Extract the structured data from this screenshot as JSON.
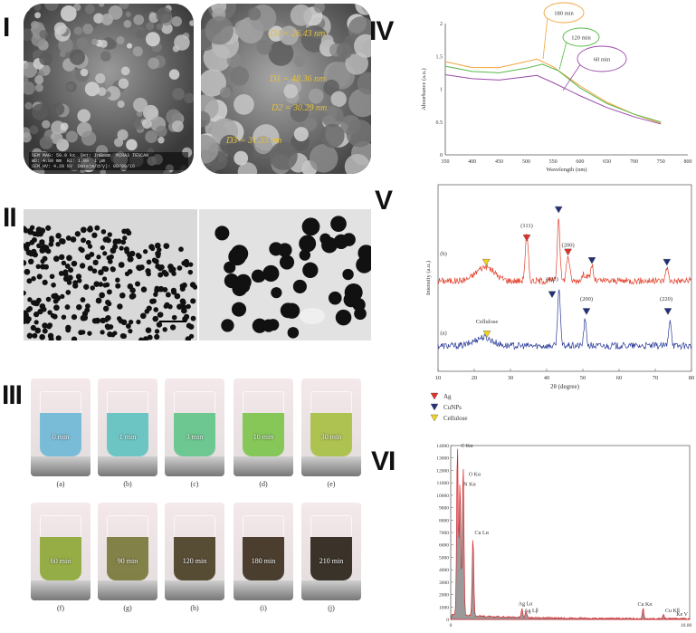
{
  "panels": {
    "I": {
      "roman": "I",
      "sem_footer": {
        "line1": "SEM MAG: 50.0 kx",
        "line2": "WD: 4.80 mm",
        "line3": "SEM HV: 4.20 kV",
        "line4": "Date(m/d/y): 08/09/16",
        "det": "Det: InBeam",
        "bi": "BI: 1.00",
        "scale": "1 µm",
        "brand": "MIRA3 TESCAN"
      },
      "labels": [
        "D4 = 26.43 nm",
        "D1 = 48.36 nm",
        "D2 = 30.29 nm",
        "D3 = 31.33 nm"
      ]
    },
    "II": {
      "roman": "II",
      "scale_label": "100 nm"
    },
    "III": {
      "roman": "III",
      "beakers": [
        {
          "time": "0 min",
          "sub": "(a)",
          "color": "#6fb8d6"
        },
        {
          "time": "1 min",
          "sub": "(b)",
          "color": "#62c2c0"
        },
        {
          "time": "3 min",
          "sub": "(c)",
          "color": "#62c48a"
        },
        {
          "time": "10 min",
          "sub": "(d)",
          "color": "#7dc44c"
        },
        {
          "time": "30 min",
          "sub": "(e)",
          "color": "#a7bf44"
        },
        {
          "time": "60 min",
          "sub": "(f)",
          "color": "#8ea838"
        },
        {
          "time": "90 min",
          "sub": "(g)",
          "color": "#78783a"
        },
        {
          "time": "120 min",
          "sub": "(h)",
          "color": "#4a3f25"
        },
        {
          "time": "180 min",
          "sub": "(i)",
          "color": "#3d3020"
        },
        {
          "time": "210 min",
          "sub": "(j)",
          "color": "#2b2419"
        }
      ]
    },
    "IV": {
      "roman": "IV"
    },
    "V": {
      "roman": "V",
      "legend": [
        "Ag",
        "CuNPs",
        "Cellulose"
      ]
    },
    "VI": {
      "roman": "VI"
    }
  },
  "chart_data": [
    {
      "id": "uv-vis",
      "type": "line",
      "xlabel": "Wavelength (nm)",
      "ylabel": "Absorbance (a.u.)",
      "xlim": [
        350,
        800
      ],
      "ylim": [
        0,
        2
      ],
      "xticks": [
        350,
        400,
        450,
        500,
        550,
        600,
        650,
        700,
        750,
        800
      ],
      "yticks": [
        0,
        0.5,
        1,
        1.5,
        2
      ],
      "series": [
        {
          "name": "180 min",
          "color": "#f2a33c",
          "x": [
            350,
            400,
            450,
            500,
            520,
            550,
            600,
            650,
            700,
            750
          ],
          "y": [
            1.42,
            1.33,
            1.33,
            1.42,
            1.46,
            1.34,
            1.05,
            0.8,
            0.62,
            0.48
          ]
        },
        {
          "name": "120 min",
          "color": "#58b848",
          "x": [
            350,
            400,
            450,
            500,
            530,
            560,
            600,
            650,
            700,
            750
          ],
          "y": [
            1.35,
            1.27,
            1.25,
            1.32,
            1.38,
            1.28,
            1.02,
            0.78,
            0.62,
            0.5
          ]
        },
        {
          "name": "60 min",
          "color": "#9a4aa8",
          "x": [
            350,
            400,
            450,
            500,
            520,
            550,
            600,
            650,
            700,
            750
          ],
          "y": [
            1.22,
            1.16,
            1.14,
            1.19,
            1.21,
            1.1,
            0.9,
            0.72,
            0.58,
            0.47
          ]
        }
      ],
      "callouts": [
        "180 min",
        "120 min",
        "60 min"
      ]
    },
    {
      "id": "xrd",
      "type": "line",
      "xlabel": "2θ (degree)",
      "ylabel": "Intensity (a.u.)",
      "xlim": [
        10,
        80
      ],
      "xticks": [
        10,
        20,
        30,
        40,
        50,
        60,
        70,
        80
      ],
      "series": [
        {
          "name": "(b)",
          "color": "#e0402a",
          "baseline": 0.3,
          "peaks": [
            [
              23,
              0.25,
              3.5
            ],
            [
              34.5,
              0.8,
              0.6
            ],
            [
              43.3,
              1.15,
              0.5
            ],
            [
              45.9,
              0.45,
              0.6
            ],
            [
              50.5,
              0.12,
              1
            ],
            [
              52.5,
              0.28,
              0.5
            ],
            [
              73.2,
              0.25,
              0.5
            ]
          ]
        },
        {
          "name": "(a)",
          "color": "#2a3a9a",
          "baseline": -0.85,
          "peaks": [
            [
              22.5,
              0.15,
              3.5
            ],
            [
              43.4,
              1.05,
              0.5
            ],
            [
              50.6,
              0.45,
              0.5
            ],
            [
              74.1,
              0.48,
              0.5
            ]
          ]
        }
      ],
      "annotations": [
        {
          "text": "(111)",
          "x": 34.5,
          "y": 1.25
        },
        {
          "text": "(200)",
          "x": 45.9,
          "y": 0.9
        },
        {
          "text": "(111)",
          "x": 41.5,
          "y": 0.3
        },
        {
          "text": "(200)",
          "x": 51,
          "y": -0.05
        },
        {
          "text": "(220)",
          "x": 73,
          "y": -0.05
        },
        {
          "text": "(b)",
          "x": 11.5,
          "y": 0.75
        },
        {
          "text": "(a)",
          "x": 11.5,
          "y": -0.65
        },
        {
          "text": "Cellulose",
          "x": 23.5,
          "y": -0.45
        }
      ],
      "markers": [
        {
          "kind": "Ag",
          "x": 34.5,
          "y": 1.05
        },
        {
          "kind": "CuNPs",
          "x": 43.3,
          "y": 1.55
        },
        {
          "kind": "Ag",
          "x": 45.9,
          "y": 0.8
        },
        {
          "kind": "CuNPs",
          "x": 52.5,
          "y": 0.65
        },
        {
          "kind": "CuNPs",
          "x": 73.2,
          "y": 0.62
        },
        {
          "kind": "Cellulose",
          "x": 23.3,
          "y": 0.62
        },
        {
          "kind": "CuNPs",
          "x": 41.5,
          "y": 0.05
        },
        {
          "kind": "CuNPs",
          "x": 51,
          "y": -0.25
        },
        {
          "kind": "CuNPs",
          "x": 73.5,
          "y": -0.25
        },
        {
          "kind": "Cellulose",
          "x": 23.5,
          "y": -0.65
        }
      ]
    },
    {
      "id": "edx",
      "type": "area",
      "xlabel": "Ke V",
      "xlim": [
        0,
        10
      ],
      "ylim": [
        0,
        14000
      ],
      "yticks": [
        0,
        1000,
        2000,
        3000,
        4000,
        5000,
        6000,
        7000,
        8000,
        9000,
        10000,
        11000,
        12000,
        13000,
        14000
      ],
      "xtick_labels": [
        "0",
        "10.00"
      ],
      "peaks": [
        {
          "label": "C Kα",
          "x": 0.28,
          "y": 14000
        },
        {
          "label": "N Kα",
          "x": 0.39,
          "y": 10900
        },
        {
          "label": "O Kα",
          "x": 0.52,
          "y": 12300
        },
        {
          "label": "Cu Lα",
          "x": 0.93,
          "y": 6400
        },
        {
          "label": "Ag Lα",
          "x": 2.98,
          "y": 700
        },
        {
          "label": "Ag Lβ",
          "x": 3.15,
          "y": 500
        },
        {
          "label": "Cu Kα",
          "x": 8.05,
          "y": 800
        },
        {
          "label": "Cu Kβ",
          "x": 8.9,
          "y": 300
        }
      ]
    }
  ]
}
